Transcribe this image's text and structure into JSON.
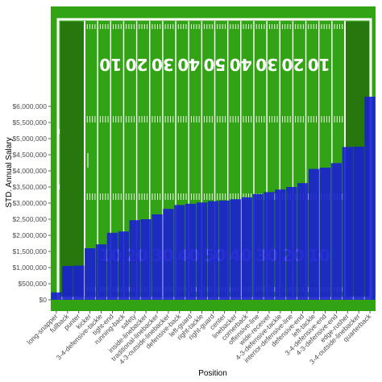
{
  "chart_data": {
    "type": "bar",
    "title": "",
    "xlabel": "Position",
    "ylabel": "STD. Annual Salary",
    "ylim": [
      0,
      6500000
    ],
    "y_ticks": [
      0,
      500000,
      1000000,
      1500000,
      2000000,
      2500000,
      3000000,
      3500000,
      4000000,
      4500000,
      5000000,
      5500000,
      6000000
    ],
    "y_tick_labels": [
      "$0",
      "$500,000",
      "$1,000,000",
      "$1,500,000",
      "$2,000,000",
      "$2,500,000",
      "$3,000,000",
      "$3,500,000",
      "$4,000,000",
      "$4,500,000",
      "$5,000,000",
      "$5,500,000",
      "$6,000,000"
    ],
    "categories": [
      "long-snapper",
      "fullback",
      "punter",
      "kicker",
      "3-4-defensive-tackle",
      "tight-end",
      "running-back",
      "safety",
      "inside-linebacker",
      "traditional-linebacker",
      "4-3-outside-linebacker",
      "defensive-back",
      "left-guard",
      "right-tackle",
      "right-guard",
      "center",
      "linebacker",
      "cornerback",
      "offensive-line",
      "wide-receiver",
      "4-3-defensive-tackle",
      "interior-defensive-line",
      "defensive-end",
      "left-tackle",
      "3-4-defensive-end",
      "4-3-defensive-end",
      "edge-rusher",
      "3-4-outside-linebacker",
      "quarterback"
    ],
    "values": [
      230000,
      1050000,
      1060000,
      1600000,
      1720000,
      2080000,
      2120000,
      2470000,
      2500000,
      2650000,
      2820000,
      2940000,
      2980000,
      3020000,
      3060000,
      3080000,
      3120000,
      3180000,
      3280000,
      3340000,
      3420000,
      3500000,
      3620000,
      4060000,
      4100000,
      4240000,
      4740000,
      4750000,
      6300000
    ],
    "bar_color": "#1a1fd0",
    "background": "field",
    "grid": false,
    "legend": "none",
    "field_yard_numbers": [
      "10",
      "20",
      "30",
      "40",
      "50",
      "40",
      "30",
      "20",
      "10"
    ]
  }
}
